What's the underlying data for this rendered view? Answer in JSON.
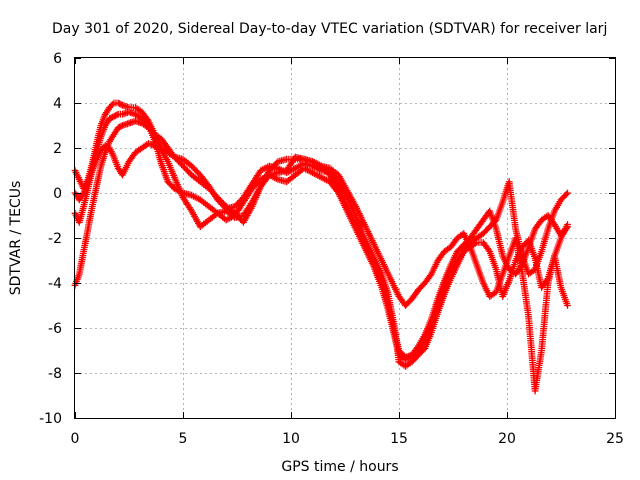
{
  "chart_data": {
    "type": "scatter",
    "title": "Day 301 of 2020, Sidereal Day-to-day VTEC variation (SDTVAR) for receiver larj",
    "xlabel": "GPS time / hours",
    "ylabel": "SDTVAR / TECUs",
    "xlim": [
      0,
      25
    ],
    "ylim": [
      -10,
      6
    ],
    "xticks": [
      0,
      5,
      10,
      15,
      20,
      25
    ],
    "xtick_labels": [
      "0",
      "5",
      "10",
      "15",
      "20",
      "25"
    ],
    "yticks": [
      -10,
      -8,
      -6,
      -4,
      -2,
      0,
      2,
      4,
      6
    ],
    "ytick_labels": [
      "-10",
      "-8",
      "-6",
      "-4",
      "-2",
      "0",
      "2",
      "4",
      "6"
    ],
    "grid": true,
    "legend": "none",
    "marker": "+",
    "series": [
      {
        "name": "track-1",
        "color": "#ff0000",
        "x": [
          0,
          0.2,
          0.4,
          0.6,
          0.8,
          1.0,
          1.2,
          1.4,
          1.6,
          1.8,
          2.0,
          2.2,
          2.5,
          2.8,
          3.1,
          3.4,
          3.7,
          4.0,
          4.3,
          4.6,
          5.0,
          5.4,
          5.8,
          6.2,
          6.6,
          7.0,
          7.4,
          7.8,
          8.2,
          8.6,
          9.0,
          9.4,
          9.8,
          10.2,
          10.6,
          11.0,
          11.4,
          11.8,
          12.2,
          12.6,
          13.0,
          13.4,
          13.8,
          14.2,
          14.5,
          14.8,
          15.0,
          15.3,
          15.6,
          15.9,
          16.2,
          16.5,
          16.8,
          17.1,
          17.4,
          17.7,
          18.0,
          18.3,
          18.6,
          18.9,
          19.2,
          19.5,
          19.8,
          20.1,
          20.4,
          20.7,
          21.0,
          21.3,
          21.6,
          21.9,
          22.2,
          22.5,
          22.8
        ],
        "y": [
          1.0,
          0.6,
          0.2,
          0.6,
          1.3,
          2.2,
          3.0,
          3.5,
          3.8,
          4.0,
          4.0,
          3.9,
          3.8,
          3.8,
          3.6,
          3.2,
          2.6,
          2.0,
          1.8,
          1.6,
          1.5,
          1.2,
          0.8,
          0.3,
          -0.3,
          -0.7,
          -0.6,
          -0.2,
          0.4,
          1.0,
          1.2,
          1.1,
          0.9,
          1.1,
          1.3,
          1.2,
          1.0,
          0.9,
          0.5,
          -0.2,
          -1.0,
          -2.0,
          -2.8,
          -3.6,
          -4.5,
          -6.0,
          -7.5,
          -7.7,
          -7.5,
          -7.2,
          -6.9,
          -6.2,
          -5.3,
          -4.5,
          -3.8,
          -3.2,
          -2.6,
          -2.2,
          -2.0,
          -1.8,
          -1.5,
          -1.2,
          -0.4,
          0.5,
          -1.6,
          -2.8,
          -3.6,
          -3.4,
          -2.6,
          -1.6,
          -0.8,
          -0.3,
          0.0
        ]
      },
      {
        "name": "track-2",
        "color": "#ff0000",
        "x": [
          0,
          0.2,
          0.4,
          0.6,
          0.8,
          1.0,
          1.2,
          1.4,
          1.6,
          1.8,
          2.0,
          2.2,
          2.5,
          2.8,
          3.1,
          3.4,
          3.7,
          4.0,
          4.3,
          4.6,
          5.0,
          5.4,
          5.8,
          6.2,
          6.6,
          7.0,
          7.4,
          7.8,
          8.2,
          8.6,
          9.0,
          9.4,
          9.8,
          10.2,
          10.6,
          11.0,
          11.4,
          11.8,
          12.2,
          12.6,
          13.0,
          13.4,
          13.8,
          14.2,
          14.5,
          14.8,
          15.0,
          15.3,
          15.6,
          15.9,
          16.2,
          16.5,
          16.8,
          17.1,
          17.4,
          17.7,
          18.0,
          18.3,
          18.6,
          18.9,
          19.2,
          19.5,
          19.8,
          20.1,
          20.4,
          20.7,
          21.0,
          21.3,
          21.6,
          21.9,
          22.2,
          22.5,
          22.8
        ],
        "y": [
          -0.9,
          -1.3,
          -0.6,
          0.2,
          1.0,
          1.8,
          2.5,
          3.0,
          3.3,
          3.4,
          3.5,
          3.5,
          3.6,
          3.5,
          3.3,
          3.0,
          2.3,
          1.3,
          0.5,
          0.2,
          0.0,
          -0.1,
          -0.3,
          -0.6,
          -0.9,
          -1.2,
          -1.0,
          -0.4,
          0.2,
          0.6,
          0.8,
          0.9,
          1.0,
          1.6,
          1.5,
          1.4,
          1.2,
          0.8,
          0.2,
          -0.6,
          -1.4,
          -2.2,
          -3.0,
          -3.8,
          -5.0,
          -6.2,
          -7.0,
          -7.3,
          -7.2,
          -6.8,
          -6.3,
          -5.6,
          -4.7,
          -3.9,
          -3.2,
          -2.6,
          -2.3,
          -2.0,
          -1.6,
          -1.2,
          -0.8,
          -1.6,
          -2.8,
          -3.4,
          -3.6,
          -3.2,
          -2.4,
          -1.6,
          -1.2,
          -1.0,
          -1.4,
          -1.9,
          -1.5
        ]
      },
      {
        "name": "track-3",
        "color": "#ff0000",
        "x": [
          0,
          0.2,
          0.4,
          0.6,
          0.8,
          1.0,
          1.2,
          1.4,
          1.6,
          1.8,
          2.0,
          2.2,
          2.5,
          2.8,
          3.1,
          3.4,
          3.7,
          4.0,
          4.3,
          4.6,
          5.0,
          5.4,
          5.8,
          6.2,
          6.6,
          7.0,
          7.4,
          7.8,
          8.2,
          8.6,
          9.0,
          9.4,
          9.8,
          10.2,
          10.6,
          11.0,
          11.4,
          11.8,
          12.2,
          12.6,
          13.0,
          13.4,
          13.8,
          14.2,
          14.5,
          14.8,
          15.0,
          15.3,
          15.6,
          15.9,
          16.2,
          16.5,
          16.8,
          17.1,
          17.4,
          17.7,
          18.0,
          18.3,
          18.6,
          18.9,
          19.2,
          19.5,
          19.8,
          20.1,
          20.4,
          20.7,
          21.0,
          21.3,
          21.6,
          21.9,
          22.2,
          22.5,
          22.8
        ],
        "y": [
          -4.1,
          -3.6,
          -2.6,
          -1.6,
          -0.6,
          0.3,
          1.2,
          1.8,
          2.3,
          2.6,
          2.9,
          3.0,
          3.1,
          3.2,
          3.1,
          2.9,
          2.6,
          2.4,
          2.0,
          1.6,
          1.2,
          0.8,
          0.5,
          0.2,
          -0.2,
          -0.6,
          -0.9,
          -1.3,
          -0.6,
          0.3,
          0.8,
          0.6,
          0.5,
          0.8,
          1.1,
          0.9,
          0.7,
          0.5,
          0.0,
          -0.8,
          -1.6,
          -2.4,
          -3.2,
          -4.2,
          -5.2,
          -6.4,
          -7.2,
          -7.4,
          -7.3,
          -7.0,
          -6.5,
          -5.8,
          -5.0,
          -4.2,
          -3.5,
          -3.0,
          -2.6,
          -2.4,
          -2.2,
          -2.2,
          -2.6,
          -3.4,
          -4.6,
          -3.9,
          -3.0,
          -2.4,
          -2.1,
          -2.9,
          -4.2,
          -3.8,
          -2.8,
          -2.0,
          -1.4
        ]
      },
      {
        "name": "track-4",
        "color": "#ff0000",
        "x": [
          0,
          0.2,
          0.4,
          0.6,
          0.8,
          1.0,
          1.2,
          1.4,
          1.6,
          1.8,
          2.0,
          2.2,
          2.5,
          2.8,
          3.1,
          3.4,
          3.7,
          4.0,
          4.3,
          4.6,
          5.0,
          5.4,
          5.8,
          6.2,
          6.6,
          7.0,
          7.4,
          7.8,
          8.2,
          8.6,
          9.0,
          9.4,
          9.8,
          10.2,
          10.6,
          11.0,
          11.4,
          11.8,
          12.2,
          12.6,
          13.0,
          13.4,
          13.8,
          14.2,
          14.5,
          14.8,
          15.0,
          15.3,
          15.6,
          15.9,
          16.2,
          16.5,
          16.8,
          17.1,
          17.4,
          17.7,
          18.0,
          18.3,
          18.6,
          18.9,
          19.2,
          19.5,
          19.8,
          20.1,
          20.4,
          20.7,
          21.0,
          21.3,
          21.6,
          21.9,
          22.2,
          22.5,
          22.8
        ],
        "y": [
          0.0,
          -0.3,
          0.0,
          0.5,
          1.0,
          1.5,
          1.9,
          2.1,
          2.0,
          1.6,
          1.1,
          0.8,
          1.4,
          1.8,
          2.0,
          2.2,
          2.1,
          1.9,
          1.4,
          0.7,
          -0.2,
          -0.8,
          -1.5,
          -1.2,
          -0.9,
          -0.8,
          -1.1,
          -1.0,
          -0.4,
          0.3,
          1.0,
          1.4,
          1.5,
          1.5,
          1.5,
          1.4,
          1.2,
          1.1,
          0.8,
          0.1,
          -0.6,
          -1.4,
          -2.2,
          -3.0,
          -3.6,
          -4.2,
          -4.6,
          -5.0,
          -4.7,
          -4.3,
          -4.0,
          -3.6,
          -3.0,
          -2.6,
          -2.4,
          -2.0,
          -1.8,
          -2.4,
          -3.2,
          -4.0,
          -4.6,
          -4.4,
          -3.6,
          -2.8,
          -2.0,
          -3.5,
          -5.5,
          -8.8,
          -7.0,
          -4.0,
          -2.8,
          -4.2,
          -5.0
        ]
      }
    ]
  }
}
